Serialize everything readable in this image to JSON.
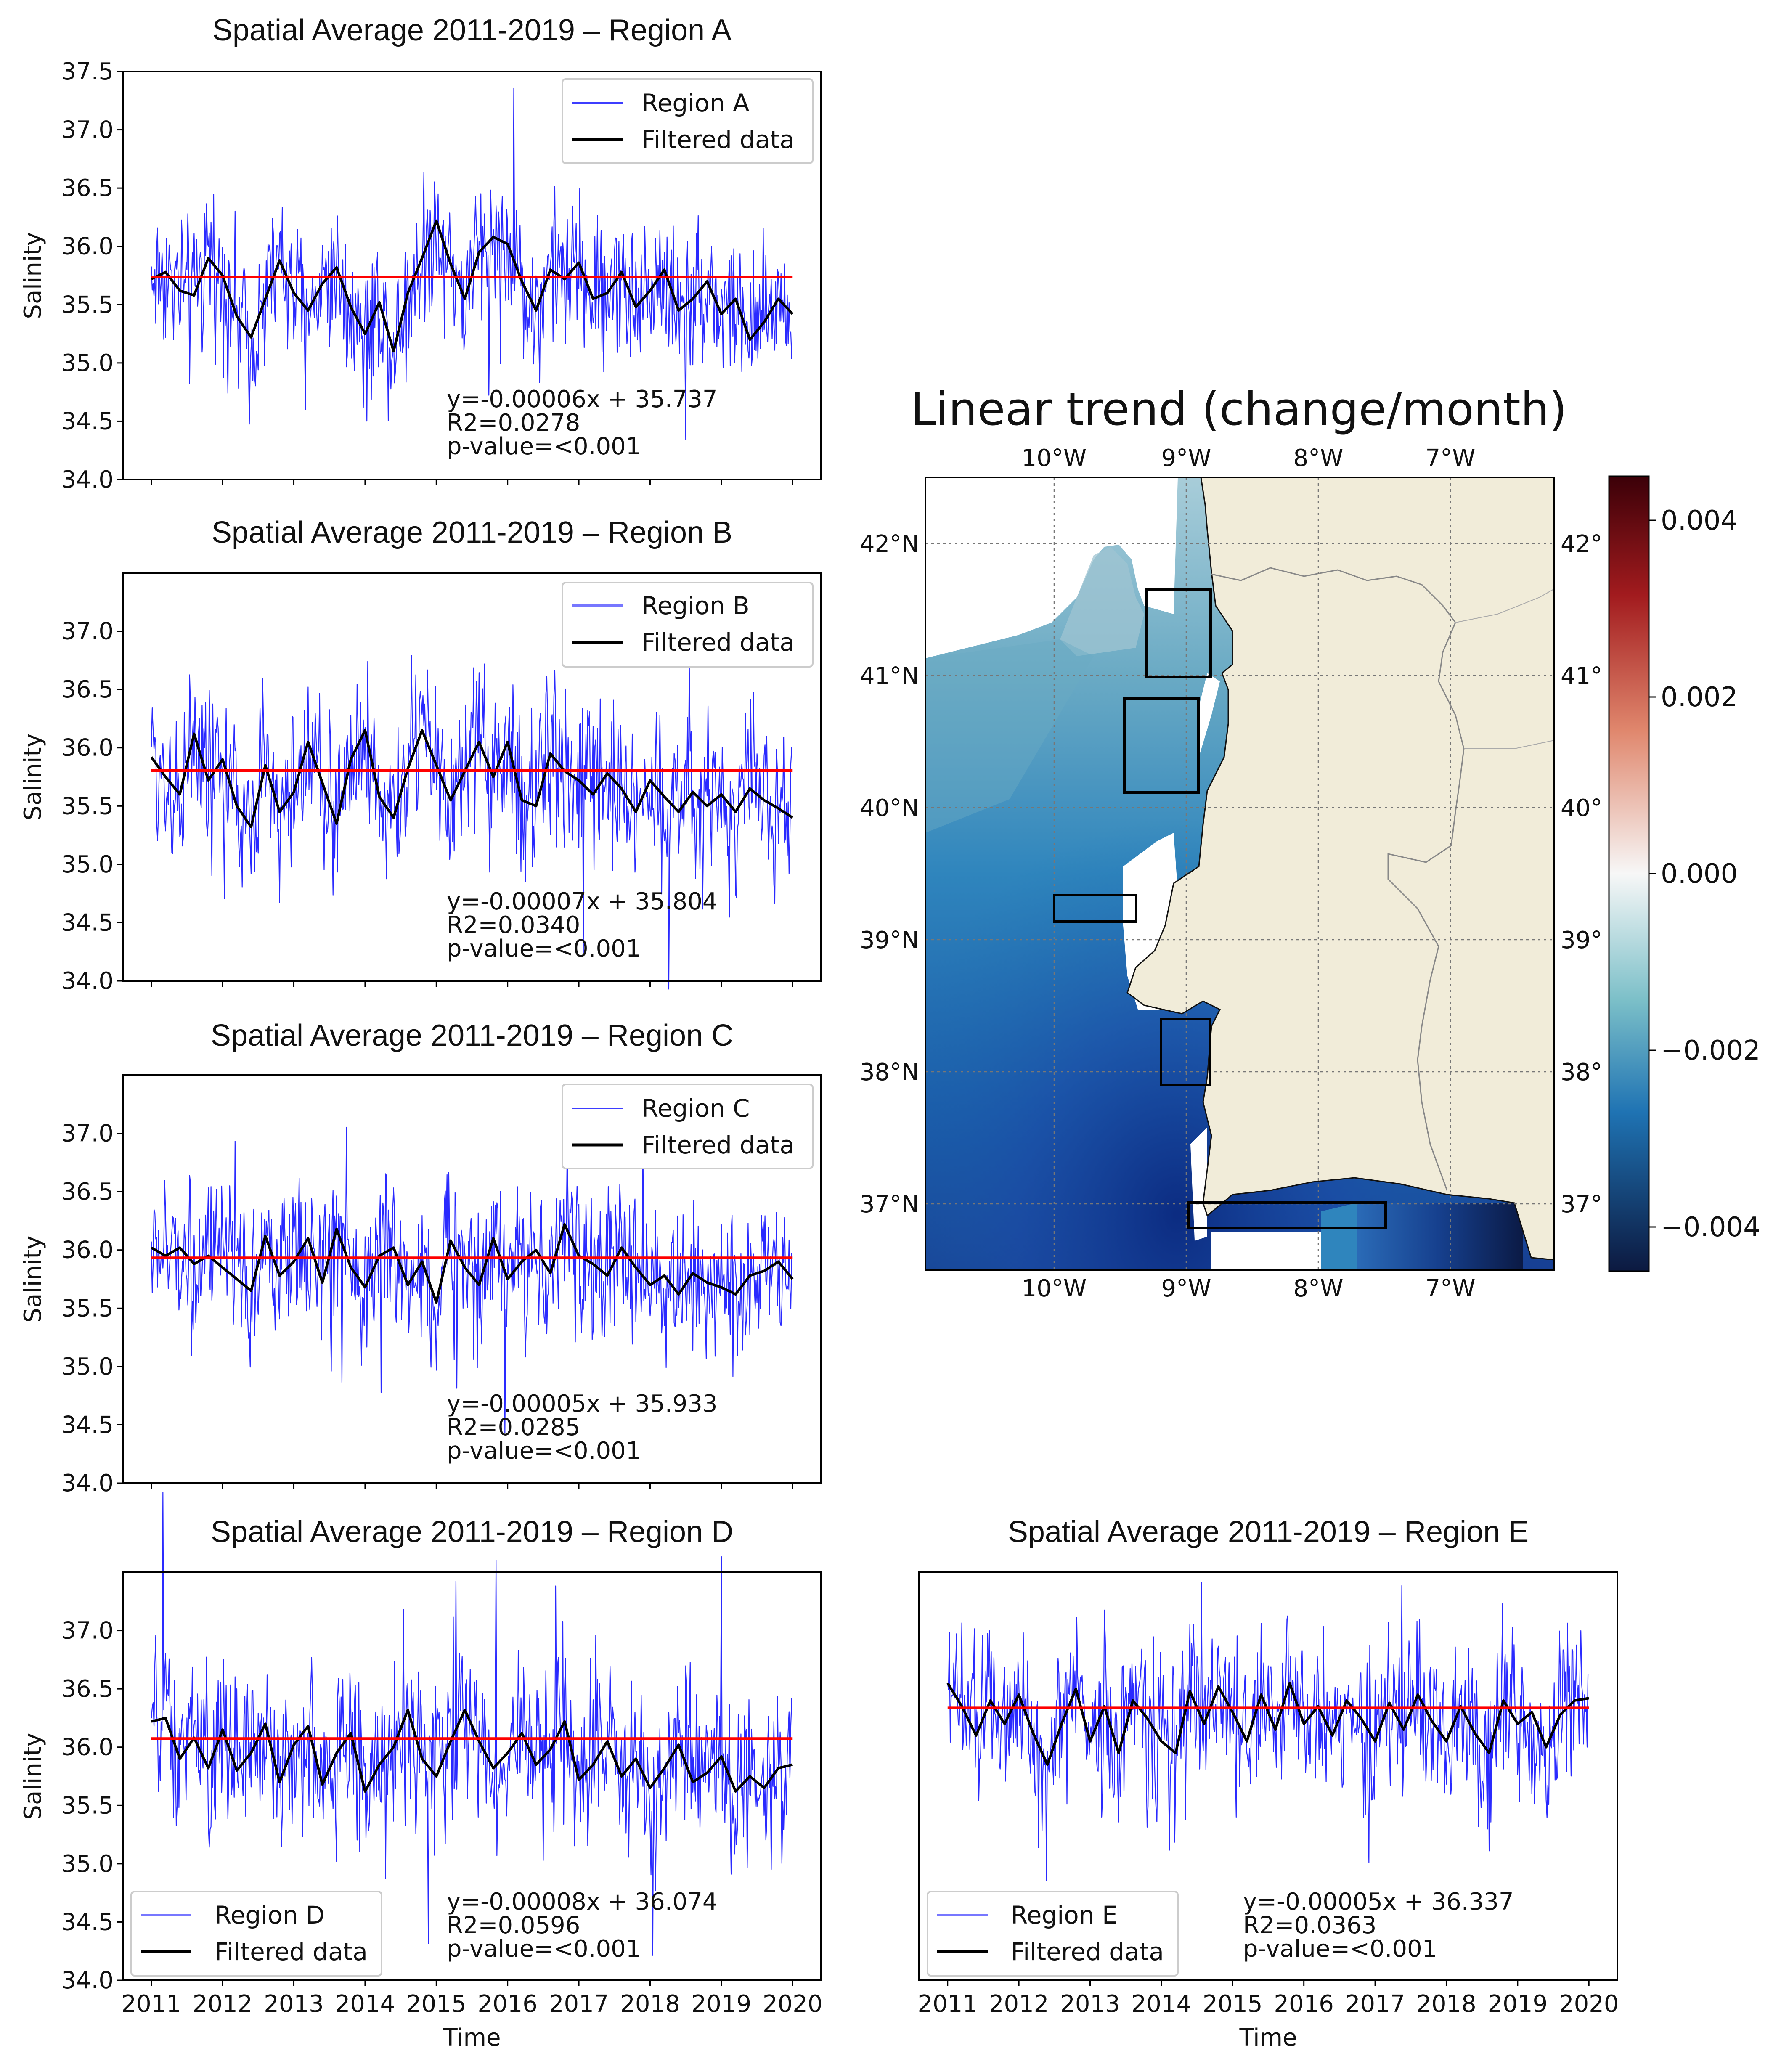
{
  "figure": {
    "map_title": "Linear trend (change/month)"
  },
  "chart_data": [
    {
      "type": "line",
      "title": "Spatial Average 2011-2019 – Region A",
      "xlabel": "",
      "ylabel": "Salinity",
      "xlim": [
        2010.6,
        2020.4
      ],
      "ylim": [
        34.0,
        37.5
      ],
      "yticks": [
        "34.0",
        "34.5",
        "35.0",
        "35.5",
        "36.0",
        "36.5",
        "37.0",
        "37.5"
      ],
      "xticks": [
        2011,
        2012,
        2013,
        2014,
        2015,
        2016,
        2017,
        2018,
        2019,
        2020
      ],
      "show_xtick_labels": false,
      "legend_position": "upper-right",
      "legend": [
        "Region A",
        "Filtered data"
      ],
      "trend": {
        "slope": -6e-05,
        "intercept": 35.737
      },
      "trend_line_value": 35.737,
      "annotation": [
        "y=-0.00006x + 35.737",
        "R2=0.0278",
        "p-value=<0.001"
      ],
      "series": [
        {
          "name": "Region A",
          "style": "noisy",
          "amplitude": 0.45
        },
        {
          "name": "Filtered data",
          "x": [
            2011.0,
            2011.2,
            2011.4,
            2011.6,
            2011.8,
            2012.0,
            2012.2,
            2012.4,
            2012.6,
            2012.8,
            2013.0,
            2013.2,
            2013.4,
            2013.6,
            2013.8,
            2014.0,
            2014.2,
            2014.4,
            2014.6,
            2014.8,
            2015.0,
            2015.2,
            2015.4,
            2015.6,
            2015.8,
            2016.0,
            2016.2,
            2016.4,
            2016.6,
            2016.8,
            2017.0,
            2017.2,
            2017.4,
            2017.6,
            2017.8,
            2018.0,
            2018.2,
            2018.4,
            2018.6,
            2018.8,
            2019.0,
            2019.2,
            2019.4,
            2019.6,
            2019.8,
            2020.0
          ],
          "values": [
            35.72,
            35.78,
            35.62,
            35.58,
            35.9,
            35.75,
            35.4,
            35.22,
            35.55,
            35.88,
            35.6,
            35.45,
            35.68,
            35.82,
            35.48,
            35.25,
            35.52,
            35.1,
            35.6,
            35.9,
            36.22,
            35.85,
            35.55,
            35.95,
            36.08,
            36.02,
            35.7,
            35.45,
            35.8,
            35.72,
            35.86,
            35.55,
            35.6,
            35.78,
            35.48,
            35.62,
            35.8,
            35.45,
            35.55,
            35.7,
            35.42,
            35.55,
            35.2,
            35.35,
            35.55,
            35.42
          ]
        }
      ]
    },
    {
      "type": "line",
      "title": "Spatial Average 2011-2019 – Region B",
      "xlabel": "",
      "ylabel": "Salinity",
      "xlim": [
        2010.6,
        2020.4
      ],
      "ylim": [
        34.0,
        37.5
      ],
      "yticks": [
        "34.0",
        "34.5",
        "35.0",
        "35.5",
        "36.0",
        "36.5",
        "37.0"
      ],
      "xticks": [
        2011,
        2012,
        2013,
        2014,
        2015,
        2016,
        2017,
        2018,
        2019,
        2020
      ],
      "show_xtick_labels": false,
      "legend_position": "upper-right",
      "legend": [
        "Region B",
        "Filtered data"
      ],
      "trend": {
        "slope": -7e-05,
        "intercept": 35.804
      },
      "trend_line_value": 35.804,
      "annotation": [
        "y=-0.00007x + 35.804",
        "R2=0.0340",
        "p-value=<0.001"
      ],
      "series": [
        {
          "name": "Region B",
          "style": "noisy",
          "amplitude": 0.5
        },
        {
          "name": "Filtered data",
          "x": [
            2011.0,
            2011.2,
            2011.4,
            2011.6,
            2011.8,
            2012.0,
            2012.2,
            2012.4,
            2012.6,
            2012.8,
            2013.0,
            2013.2,
            2013.4,
            2013.6,
            2013.8,
            2014.0,
            2014.2,
            2014.4,
            2014.6,
            2014.8,
            2015.0,
            2015.2,
            2015.4,
            2015.6,
            2015.8,
            2016.0,
            2016.2,
            2016.4,
            2016.6,
            2016.8,
            2017.0,
            2017.2,
            2017.4,
            2017.6,
            2017.8,
            2018.0,
            2018.2,
            2018.4,
            2018.6,
            2018.8,
            2019.0,
            2019.2,
            2019.4,
            2019.6,
            2019.8,
            2020.0
          ],
          "values": [
            35.92,
            35.75,
            35.6,
            36.12,
            35.72,
            35.9,
            35.5,
            35.32,
            35.85,
            35.45,
            35.62,
            36.05,
            35.7,
            35.35,
            35.9,
            36.15,
            35.58,
            35.4,
            35.82,
            36.15,
            35.85,
            35.55,
            35.8,
            36.05,
            35.75,
            36.05,
            35.55,
            35.5,
            35.95,
            35.8,
            35.72,
            35.6,
            35.78,
            35.65,
            35.45,
            35.72,
            35.58,
            35.45,
            35.62,
            35.5,
            35.6,
            35.45,
            35.65,
            35.55,
            35.48,
            35.4
          ]
        }
      ]
    },
    {
      "type": "line",
      "title": "Spatial Average 2011-2019 – Region C",
      "xlabel": "",
      "ylabel": "Salinity",
      "xlim": [
        2010.6,
        2020.4
      ],
      "ylim": [
        34.0,
        37.5
      ],
      "yticks": [
        "34.0",
        "34.5",
        "35.0",
        "35.5",
        "36.0",
        "36.5",
        "37.0"
      ],
      "xticks": [
        2011,
        2012,
        2013,
        2014,
        2015,
        2016,
        2017,
        2018,
        2019,
        2020
      ],
      "show_xtick_labels": false,
      "legend_position": "upper-right",
      "legend": [
        "Region C",
        "Filtered data"
      ],
      "trend": {
        "slope": -5e-05,
        "intercept": 35.933
      },
      "trend_line_value": 35.933,
      "annotation": [
        "y=-0.00005x + 35.933",
        "R2=0.0285",
        "p-value=<0.001"
      ],
      "series": [
        {
          "name": "Region C",
          "style": "noisy",
          "amplitude": 0.45
        },
        {
          "name": "Filtered data",
          "x": [
            2011.0,
            2011.2,
            2011.4,
            2011.6,
            2011.8,
            2012.0,
            2012.2,
            2012.4,
            2012.6,
            2012.8,
            2013.0,
            2013.2,
            2013.4,
            2013.6,
            2013.8,
            2014.0,
            2014.2,
            2014.4,
            2014.6,
            2014.8,
            2015.0,
            2015.2,
            2015.4,
            2015.6,
            2015.8,
            2016.0,
            2016.2,
            2016.4,
            2016.6,
            2016.8,
            2017.0,
            2017.2,
            2017.4,
            2017.6,
            2017.8,
            2018.0,
            2018.2,
            2018.4,
            2018.6,
            2018.8,
            2019.0,
            2019.2,
            2019.4,
            2019.6,
            2019.8,
            2020.0
          ],
          "values": [
            36.02,
            35.95,
            36.02,
            35.88,
            35.95,
            35.85,
            35.75,
            35.65,
            36.12,
            35.78,
            35.9,
            36.1,
            35.72,
            36.18,
            35.85,
            35.68,
            35.95,
            36.02,
            35.7,
            35.9,
            35.55,
            36.08,
            35.85,
            35.7,
            36.1,
            35.75,
            35.9,
            36.0,
            35.8,
            36.22,
            35.95,
            35.88,
            35.78,
            36.02,
            35.85,
            35.7,
            35.78,
            35.62,
            35.8,
            35.72,
            35.68,
            35.62,
            35.78,
            35.82,
            35.9,
            35.75
          ]
        }
      ]
    },
    {
      "type": "line",
      "title": "Spatial Average 2011-2019 – Region D",
      "xlabel": "Time",
      "ylabel": "Salinity",
      "xlim": [
        2010.6,
        2020.4
      ],
      "ylim": [
        34.0,
        37.5
      ],
      "yticks": [
        "34.0",
        "34.5",
        "35.0",
        "35.5",
        "36.0",
        "36.5",
        "37.0"
      ],
      "xticks": [
        2011,
        2012,
        2013,
        2014,
        2015,
        2016,
        2017,
        2018,
        2019,
        2020
      ],
      "show_xtick_labels": true,
      "legend_position": "lower-left",
      "legend": [
        "Region D",
        "Filtered data"
      ],
      "trend": {
        "slope": -8e-05,
        "intercept": 36.074
      },
      "trend_line_value": 36.074,
      "annotation": [
        "y=-0.00008x + 36.074",
        "R2=0.0596",
        "p-value=<0.001"
      ],
      "series": [
        {
          "name": "Region D",
          "style": "noisy",
          "amplitude": 0.5
        },
        {
          "name": "Filtered data",
          "x": [
            2011.0,
            2011.2,
            2011.4,
            2011.6,
            2011.8,
            2012.0,
            2012.2,
            2012.4,
            2012.6,
            2012.8,
            2013.0,
            2013.2,
            2013.4,
            2013.6,
            2013.8,
            2014.0,
            2014.2,
            2014.4,
            2014.6,
            2014.8,
            2015.0,
            2015.2,
            2015.4,
            2015.6,
            2015.8,
            2016.0,
            2016.2,
            2016.4,
            2016.6,
            2016.8,
            2017.0,
            2017.2,
            2017.4,
            2017.6,
            2017.8,
            2018.0,
            2018.2,
            2018.4,
            2018.6,
            2018.8,
            2019.0,
            2019.2,
            2019.4,
            2019.6,
            2019.8,
            2020.0
          ],
          "values": [
            36.22,
            36.25,
            35.9,
            36.08,
            35.82,
            36.15,
            35.8,
            35.95,
            36.2,
            35.7,
            36.02,
            36.18,
            35.68,
            35.95,
            36.12,
            35.62,
            35.85,
            36.0,
            36.32,
            35.9,
            35.75,
            36.05,
            36.32,
            36.05,
            35.82,
            35.95,
            36.12,
            35.85,
            35.98,
            36.22,
            35.72,
            35.85,
            36.05,
            35.75,
            35.9,
            35.65,
            35.82,
            36.02,
            35.7,
            35.78,
            35.92,
            35.62,
            35.75,
            35.65,
            35.82,
            35.85
          ]
        }
      ]
    },
    {
      "type": "line",
      "title": "Spatial Average 2011-2019 – Region E",
      "xlabel": "Time",
      "ylabel": "",
      "xlim": [
        2010.6,
        2020.4
      ],
      "ylim": [
        34.0,
        37.5
      ],
      "yticks": [],
      "xticks": [
        2011,
        2012,
        2013,
        2014,
        2015,
        2016,
        2017,
        2018,
        2019,
        2020
      ],
      "show_xtick_labels": true,
      "legend_position": "lower-left",
      "legend": [
        "Region E",
        "Filtered data"
      ],
      "trend": {
        "slope": -5e-05,
        "intercept": 36.337
      },
      "trend_line_value": 36.337,
      "annotation": [
        "y=-0.00005x + 36.337",
        "R2=0.0363",
        "p-value=<0.001"
      ],
      "series": [
        {
          "name": "Region E",
          "style": "noisy",
          "amplitude": 0.5
        },
        {
          "name": "Filtered data",
          "x": [
            2011.0,
            2011.2,
            2011.4,
            2011.6,
            2011.8,
            2012.0,
            2012.2,
            2012.4,
            2012.6,
            2012.8,
            2013.0,
            2013.2,
            2013.4,
            2013.6,
            2013.8,
            2014.0,
            2014.2,
            2014.4,
            2014.6,
            2014.8,
            2015.0,
            2015.2,
            2015.4,
            2015.6,
            2015.8,
            2016.0,
            2016.2,
            2016.4,
            2016.6,
            2016.8,
            2017.0,
            2017.2,
            2017.4,
            2017.6,
            2017.8,
            2018.0,
            2018.2,
            2018.4,
            2018.6,
            2018.8,
            2019.0,
            2019.2,
            2019.4,
            2019.6,
            2019.8,
            2020.0
          ],
          "values": [
            36.55,
            36.35,
            36.1,
            36.4,
            36.2,
            36.45,
            36.12,
            35.85,
            36.2,
            36.5,
            36.05,
            36.35,
            35.95,
            36.4,
            36.25,
            36.05,
            35.95,
            36.48,
            36.2,
            36.52,
            36.3,
            36.05,
            36.45,
            36.15,
            36.55,
            36.2,
            36.35,
            36.1,
            36.4,
            36.25,
            36.05,
            36.38,
            36.15,
            36.45,
            36.22,
            36.05,
            36.35,
            36.12,
            35.95,
            36.4,
            36.2,
            36.3,
            36.0,
            36.28,
            36.4,
            36.42
          ]
        }
      ]
    },
    {
      "type": "heatmap",
      "title": "Linear trend (change/month)",
      "x_ticks": [
        "10°W",
        "9°W",
        "8°W",
        "7°W"
      ],
      "x_tick_values": [
        -10,
        -9,
        -8,
        -7
      ],
      "y_ticks": [
        "42°N",
        "41°N",
        "40°N",
        "39°N",
        "38°N",
        "37°N"
      ],
      "y_tick_values": [
        42,
        41,
        40,
        39,
        38,
        37
      ],
      "right_y_ticks": [
        "42°",
        "41°",
        "40°",
        "39°",
        "38°",
        "37°"
      ],
      "xlim": [
        -11.0,
        -6.25
      ],
      "ylim": [
        36.5,
        42.5
      ],
      "colorbar_range": [
        -0.0045,
        0.0045
      ],
      "colorbar_ticks": [
        0.004,
        0.002,
        0.0,
        -0.002,
        -0.004
      ],
      "colorbar_labels": [
        "0.004",
        "0.002",
        "0.000",
        "−0.002",
        "−0.004"
      ],
      "colors": {
        "ocean": "#2c78b9",
        "land": "#f1ecd9",
        "cbar_top": "#3b0008",
        "cbar_mid": "#f7f7f7",
        "cbar_bottom": "#0c1940"
      },
      "regions": [
        {
          "name": "A",
          "lon": [
            -9.35,
            -8.87
          ],
          "lat": [
            40.99,
            41.65
          ]
        },
        {
          "name": "B",
          "lon": [
            -9.52,
            -8.96
          ],
          "lat": [
            40.11,
            40.82
          ]
        },
        {
          "name": "C",
          "lon": [
            -10.0,
            -9.38
          ],
          "lat": [
            39.15,
            39.35
          ]
        },
        {
          "name": "D",
          "lon": [
            -9.19,
            -8.82
          ],
          "lat": [
            37.91,
            38.41
          ]
        },
        {
          "name": "E",
          "lon": [
            -8.98,
            -7.49
          ],
          "lat": [
            36.82,
            37.01
          ]
        }
      ]
    }
  ]
}
